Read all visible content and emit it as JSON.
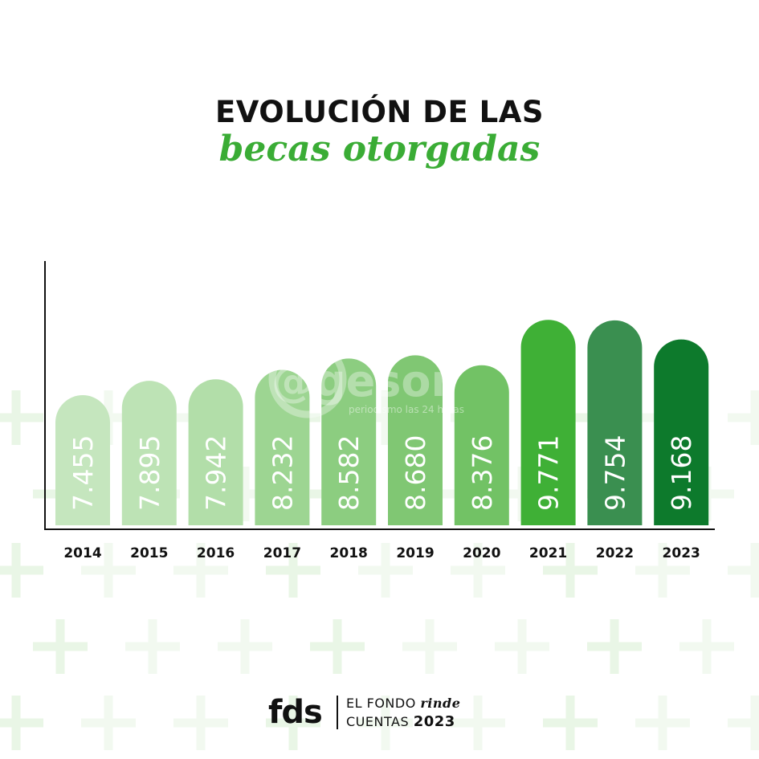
{
  "title": {
    "line1": "EVOLUCIÓN DE LAS",
    "line2": "becas otorgadas"
  },
  "chart_data": {
    "type": "bar",
    "title": "EVOLUCIÓN DE LAS becas otorgadas",
    "categories": [
      "2014",
      "2015",
      "2016",
      "2017",
      "2018",
      "2019",
      "2020",
      "2021",
      "2022",
      "2023"
    ],
    "values": [
      7455,
      7895,
      7942,
      8232,
      8582,
      8680,
      8376,
      9771,
      9754,
      9168
    ],
    "value_labels": [
      "7.455",
      "7.895",
      "7.942",
      "8.232",
      "8.582",
      "8.680",
      "8.376",
      "9.771",
      "9.754",
      "9.168"
    ],
    "colors": [
      "#c5e6be",
      "#bde3b5",
      "#b2dea9",
      "#9dd592",
      "#8ccd80",
      "#80c773",
      "#72c265",
      "#3fb036",
      "#3a8f50",
      "#0d7a2c"
    ],
    "xlabel": "",
    "ylabel": "",
    "grid": false,
    "value_label_orientation": "vertical"
  },
  "watermark": {
    "main": "@gesor",
    "sub": "periodismo las 24 horas"
  },
  "footer": {
    "logo": "fds",
    "line1_a": "EL FONDO ",
    "line1_b": "rinde",
    "line2_a": "CUENTAS ",
    "line2_b": "2023"
  }
}
